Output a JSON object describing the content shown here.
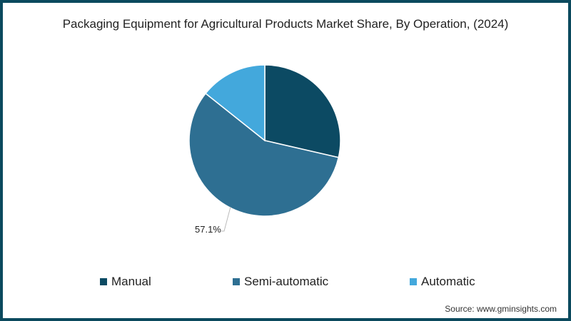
{
  "chart_data": {
    "type": "pie",
    "title": "Packaging Equipment for Agricultural Products Market Share, By Operation, (2024)",
    "categories": [
      "Manual",
      "Semi-automatic",
      "Automatic"
    ],
    "values": [
      28.6,
      57.1,
      14.3
    ],
    "colors": [
      "#0c4a63",
      "#2e6f92",
      "#43a8dc"
    ],
    "data_labels": [
      {
        "category": "Semi-automatic",
        "text": "57.1%"
      }
    ],
    "legend_position": "bottom",
    "start_angle": 0,
    "direction": "clockwise"
  },
  "legend": {
    "items": [
      {
        "label": "Manual",
        "color": "#0c4a63"
      },
      {
        "label": "Semi-automatic",
        "color": "#2e6f92"
      },
      {
        "label": "Automatic",
        "color": "#43a8dc"
      }
    ]
  },
  "source": "Source: www.gminsights.com"
}
